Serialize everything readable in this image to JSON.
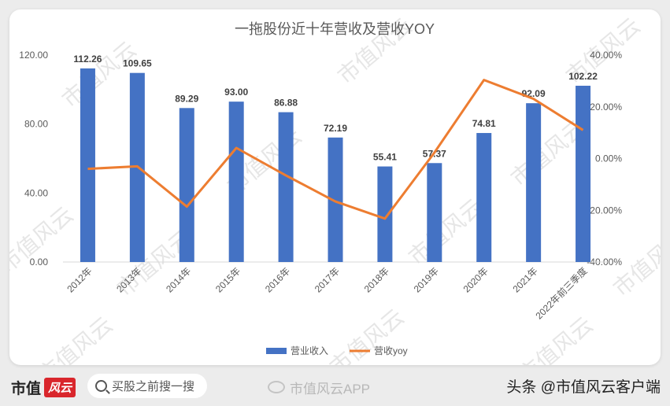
{
  "chart_data": {
    "type": "bar",
    "title": "一拖股份近十年营收及营收YOY",
    "categories": [
      "2012年",
      "2013年",
      "2014年",
      "2015年",
      "2016年",
      "2017年",
      "2018年",
      "2019年",
      "2020年",
      "2021年",
      "2022年前三季度"
    ],
    "series": [
      {
        "name": "营业收入",
        "type": "bar",
        "axis": "left",
        "color": "#4472c4",
        "values": [
          112.26,
          109.65,
          89.29,
          93.0,
          86.88,
          72.19,
          55.41,
          57.37,
          74.81,
          92.09,
          102.22
        ],
        "labels": [
          "112.26",
          "109.65",
          "89.29",
          "93.00",
          "86.88",
          "72.19",
          "55.41",
          "57.37",
          "74.81",
          "92.09",
          "102.22"
        ]
      },
      {
        "name": "营收yoy",
        "type": "line",
        "axis": "right",
        "color": "#ed7d31",
        "values": [
          -4.0,
          -3.0,
          -18.6,
          4.1,
          -6.5,
          -16.6,
          -23.2,
          2.3,
          30.4,
          23.1,
          11.0
        ]
      }
    ],
    "left_axis": {
      "ticks": [
        "0.00",
        "40.00",
        "80.00",
        "120.00"
      ],
      "min": 0,
      "max": 120
    },
    "right_axis": {
      "ticks": [
        "-40.00%",
        "-20.00%",
        "0.00%",
        "20.00%",
        "40.00%"
      ],
      "min": -40,
      "max": 40
    },
    "legend_position": "bottom",
    "grid": false,
    "watermark": "市值风云"
  },
  "footer": {
    "brand": "市值",
    "brand_mark": "风云",
    "search_placeholder": "买股之前搜一搜",
    "app_watermark": "市值风云APP",
    "source": "头条 @市值风云客户端"
  }
}
